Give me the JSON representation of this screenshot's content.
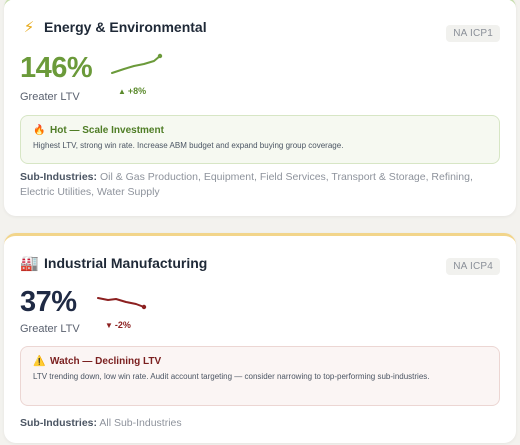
{
  "cards": [
    {
      "icon": "lightning-icon",
      "icon_glyph": "⚡",
      "title": "Energy & Environmental",
      "badge": "NA ICP1",
      "value": "146%",
      "value_label": "Greater LTV",
      "trend": {
        "direction": "up",
        "arrow": "▲",
        "delta": "+8%"
      },
      "callout": {
        "icon": "fire-icon",
        "icon_glyph": "🔥",
        "heading": "Hot — Scale Investment",
        "body": "Highest LTV, strong win rate. Increase ABM budget and expand buying group coverage."
      },
      "sub_label": "Sub-Industries:",
      "sub_industries": "Oil & Gas Production, Equipment, Field Services, Transport & Storage, Refining, Electric Utilities, Water Supply",
      "colors": {
        "accent": "#6b9a3a",
        "border": "#c7dfae"
      }
    },
    {
      "icon": "factory-icon",
      "icon_glyph": "🏭",
      "title": "Industrial Manufacturing",
      "badge": "NA ICP4",
      "value": "37%",
      "value_label": "Greater LTV",
      "trend": {
        "direction": "down",
        "arrow": "▼",
        "delta": "-2%"
      },
      "callout": {
        "icon": "warning-icon",
        "icon_glyph": "⚠️",
        "heading": "Watch — Declining LTV",
        "body": "LTV trending down, low win rate. Audit account targeting — consider narrowing to top-performing sub-industries."
      },
      "sub_label": "Sub-Industries:",
      "sub_industries": "All Sub-Industries",
      "colors": {
        "accent": "#1f2a44",
        "border": "#f2d58a"
      }
    }
  ]
}
